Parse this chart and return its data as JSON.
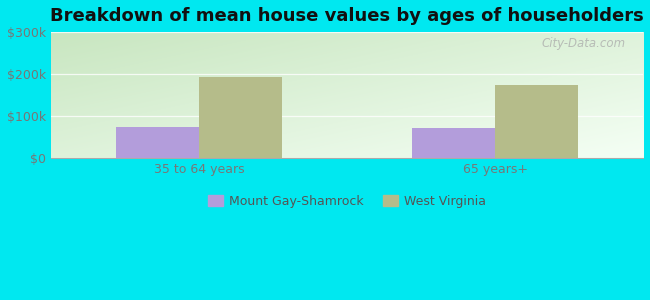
{
  "title": "Breakdown of mean house values by ages of householders",
  "categories": [
    "35 to 64 years",
    "65 years+"
  ],
  "series": [
    {
      "label": "Mount Gay-Shamrock",
      "values": [
        75000,
        72000
      ],
      "color": "#b39ddb"
    },
    {
      "label": "West Virginia",
      "values": [
        193000,
        175000
      ],
      "color": "#b5bc8a"
    }
  ],
  "ylim": [
    0,
    300000
  ],
  "yticks": [
    0,
    100000,
    200000,
    300000
  ],
  "ytick_labels": [
    "$0",
    "$100k",
    "$200k",
    "$300k"
  ],
  "background_color": "#00e8f0",
  "bar_width": 0.28,
  "title_fontsize": 13,
  "legend_fontsize": 9,
  "tick_fontsize": 9,
  "watermark": "City-Data.com",
  "grad_top_left": "#b2dfdb",
  "grad_bottom_right": "#f0fff0"
}
